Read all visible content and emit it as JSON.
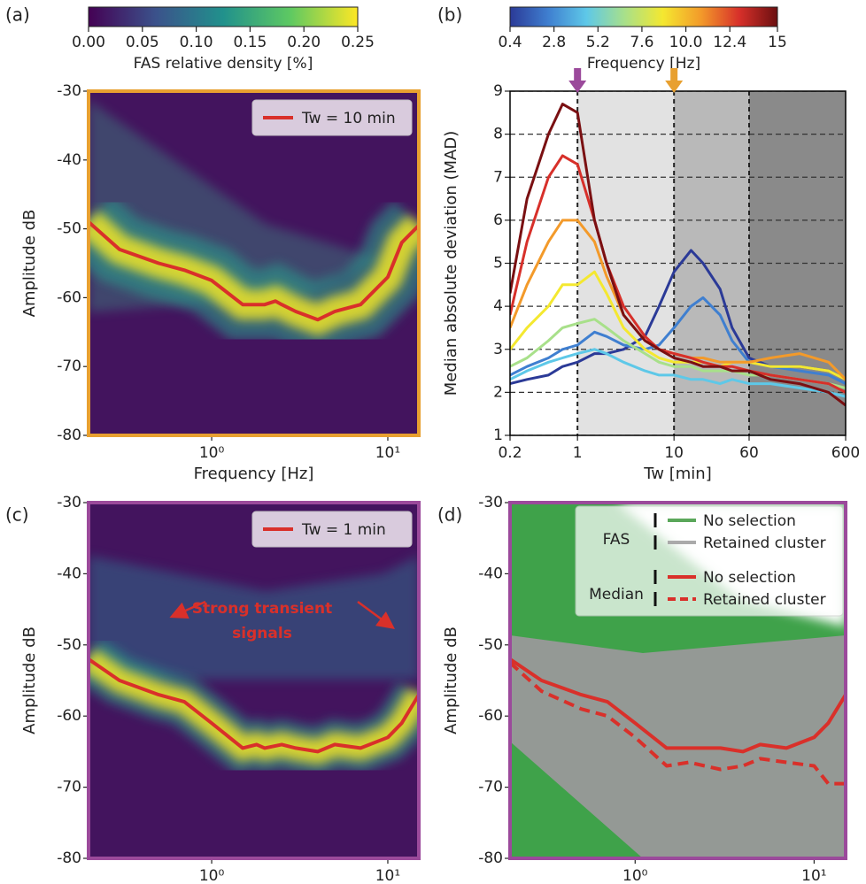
{
  "chart_data": [
    {
      "type": "line",
      "label": "(a)",
      "xlabel": "Frequency [Hz]",
      "ylabel": "Amplitude dB",
      "xscale": "log",
      "xlim": [
        0.2,
        15
      ],
      "xticks": [
        {
          "value": 1,
          "label": "10⁰"
        },
        {
          "value": 10,
          "label": "10¹"
        }
      ],
      "ylim": [
        -80,
        -30
      ],
      "yticks": [
        -80,
        -70,
        -60,
        -50,
        -40,
        -30
      ],
      "frame_color": "#e8a030",
      "colorbar": {
        "label": "FAS relative density [%]",
        "lim": [
          0,
          0.25
        ],
        "ticks": [
          {
            "value": 0,
            "label": "0.00"
          },
          0.05,
          {
            "value": 0.1,
            "label": "0.10"
          },
          0.15,
          {
            "value": 0.2,
            "label": "0.20"
          },
          0.25
        ],
        "colors": [
          "#440154",
          "#3b528b",
          "#21918c",
          "#5ec962",
          "#fde725"
        ]
      },
      "legend": "upper right",
      "x": [
        0.2,
        0.3,
        0.5,
        0.7,
        1,
        1.5,
        2,
        2.3,
        2.5,
        3,
        4,
        5,
        7,
        10,
        12,
        15
      ],
      "series": [
        {
          "name": "Tw = 10 min",
          "color": "#d9302a",
          "values": [
            -49,
            -53,
            -55,
            -56,
            -57.5,
            -61,
            -61,
            -60.5,
            -61,
            -62,
            -63.2,
            -62,
            -61,
            -57,
            -52,
            -49.5
          ]
        }
      ]
    },
    {
      "type": "line",
      "label": "(b)",
      "xlabel": "Tw [min]",
      "ylabel": "Median absolute deviation (MAD)",
      "xscale": "log",
      "xlim": [
        0.2,
        600
      ],
      "xticks": [
        0.2,
        1,
        10,
        60,
        600
      ],
      "ylim": [
        1,
        9
      ],
      "yticks": [
        1,
        2,
        3,
        4,
        5,
        6,
        7,
        8,
        9
      ],
      "grid": true,
      "frame_color": "#000000",
      "colorbar": {
        "label": "Frequency [Hz]",
        "lim": [
          0.4,
          15
        ],
        "ticks": [
          0.4,
          2.8,
          5.2,
          7.6,
          {
            "value": 10,
            "label": "10.0"
          },
          12.4,
          15
        ],
        "colors": [
          "#2b3a97",
          "#3f7fd0",
          "#5ec8e8",
          "#a8e08a",
          "#f4e830",
          "#f39a2a",
          "#d7302a",
          "#6b0f10"
        ]
      },
      "spans": [
        {
          "range": [
            1,
            10
          ],
          "color": "#e2e2e2"
        },
        {
          "range": [
            10,
            60
          ],
          "color": "#b9b9b9"
        },
        {
          "range": [
            60,
            600
          ],
          "color": "#8a8a8a"
        }
      ],
      "arrows": [
        {
          "x": 1,
          "color": "#9b4a9b"
        },
        {
          "x": 10,
          "color": "#e8a030"
        }
      ],
      "x": [
        0.2,
        0.3,
        0.5,
        0.7,
        1,
        1.5,
        2,
        3,
        5,
        7,
        10,
        15,
        20,
        30,
        40,
        60,
        100,
        200,
        400,
        600
      ],
      "series": [
        {
          "color": "#2b3a97",
          "values": [
            2.2,
            2.3,
            2.4,
            2.6,
            2.7,
            2.9,
            2.9,
            3,
            3.3,
            4,
            4.8,
            5.3,
            5,
            4.4,
            3.5,
            2.8,
            2.6,
            2.6,
            2.5,
            2.3
          ]
        },
        {
          "color": "#3f7fd0",
          "values": [
            2.4,
            2.6,
            2.8,
            3,
            3.1,
            3.4,
            3.3,
            3.1,
            3,
            3.1,
            3.5,
            4,
            4.2,
            3.8,
            3.2,
            2.7,
            2.6,
            2.5,
            2.4,
            2.2
          ]
        },
        {
          "color": "#5ec8e8",
          "values": [
            2.3,
            2.5,
            2.7,
            2.8,
            2.9,
            3,
            2.9,
            2.7,
            2.5,
            2.4,
            2.4,
            2.3,
            2.3,
            2.2,
            2.3,
            2.2,
            2.2,
            2.1,
            2,
            1.9
          ]
        },
        {
          "color": "#a8e08a",
          "values": [
            2.6,
            2.8,
            3.2,
            3.5,
            3.6,
            3.7,
            3.5,
            3.2,
            2.9,
            2.7,
            2.6,
            2.6,
            2.5,
            2.5,
            2.5,
            2.4,
            2.4,
            2.3,
            2.2,
            2.1
          ]
        },
        {
          "color": "#f4e830",
          "values": [
            3,
            3.5,
            4,
            4.5,
            4.5,
            4.8,
            4.3,
            3.5,
            3,
            2.8,
            2.7,
            2.7,
            2.7,
            2.6,
            2.7,
            2.7,
            2.6,
            2.6,
            2.5,
            2.3
          ]
        },
        {
          "color": "#f39a2a",
          "values": [
            3.5,
            4.5,
            5.5,
            6,
            6,
            5.5,
            4.7,
            3.8,
            3.2,
            3,
            2.9,
            2.8,
            2.8,
            2.7,
            2.7,
            2.7,
            2.8,
            2.9,
            2.7,
            2.3
          ]
        },
        {
          "color": "#d7302a",
          "values": [
            3.8,
            5.5,
            7,
            7.5,
            7.3,
            6,
            5,
            4,
            3.3,
            3,
            2.9,
            2.8,
            2.7,
            2.6,
            2.6,
            2.5,
            2.4,
            2.3,
            2.2,
            2
          ]
        },
        {
          "color": "#7a1012",
          "values": [
            4.3,
            6.5,
            8,
            8.7,
            8.5,
            6,
            5,
            3.8,
            3.2,
            3,
            2.8,
            2.7,
            2.6,
            2.6,
            2.5,
            2.5,
            2.3,
            2.2,
            2,
            1.7
          ]
        }
      ]
    },
    {
      "type": "line",
      "label": "(c)",
      "xlabel": "Frequency [Hz]",
      "ylabel": "Amplitude dB",
      "xscale": "log",
      "xlim": [
        0.2,
        15
      ],
      "xticks": [
        {
          "value": 1,
          "label": "10⁰"
        },
        {
          "value": 10,
          "label": "10¹"
        }
      ],
      "ylim": [
        -80,
        -30
      ],
      "yticks": [
        -80,
        -70,
        -60,
        -50,
        -40,
        -30
      ],
      "frame_color": "#9b4a9b",
      "legend": "upper right",
      "annotation": [
        "Strong transient",
        "signals"
      ],
      "x": [
        0.2,
        0.3,
        0.5,
        0.7,
        1,
        1.5,
        1.8,
        2,
        2.5,
        3,
        4,
        5,
        7,
        10,
        12,
        15
      ],
      "series": [
        {
          "name": "Tw = 1 min",
          "color": "#d9302a",
          "values": [
            -52,
            -55,
            -57,
            -58,
            -61,
            -64.5,
            -64,
            -64.5,
            -64,
            -64.5,
            -65,
            -64,
            -64.5,
            -63,
            -61,
            -57
          ]
        }
      ]
    },
    {
      "type": "line",
      "label": "(d)",
      "xlabel": "Frequency [Hz]",
      "ylabel": "Amplitude dB",
      "xscale": "log",
      "xlim": [
        0.2,
        15
      ],
      "xticks": [
        {
          "value": 1,
          "label": "10⁰"
        },
        {
          "value": 10,
          "label": "10¹"
        }
      ],
      "ylim": [
        -80,
        -30
      ],
      "yticks": [
        -80,
        -70,
        -60,
        -50,
        -40,
        -30
      ],
      "frame_color": "#9b4a9b",
      "fas_legend": {
        "title": "FAS",
        "entries": [
          {
            "name": "No selection",
            "color": "#5aa75a"
          },
          {
            "name": "Retained cluster",
            "color": "#aaaaaa"
          }
        ]
      },
      "legend_title": "Median",
      "x": [
        0.2,
        0.3,
        0.5,
        0.7,
        1,
        1.5,
        2,
        3,
        4,
        5,
        7,
        10,
        12,
        15
      ],
      "series": [
        {
          "name": "No selection",
          "color": "#d9302a",
          "values": [
            -52,
            -55,
            -57,
            -58,
            -61,
            -64.5,
            -64.5,
            -64.5,
            -65,
            -64,
            -64.5,
            -63,
            -61,
            -57
          ]
        },
        {
          "name": "Retained cluster",
          "color": "#d9302a",
          "dash": true,
          "values": [
            -52.5,
            -56.5,
            -59,
            -60,
            -63,
            -67,
            -66.5,
            -67.5,
            -67,
            -66,
            -66.5,
            -67,
            -69.5,
            -69.5
          ]
        }
      ]
    }
  ]
}
